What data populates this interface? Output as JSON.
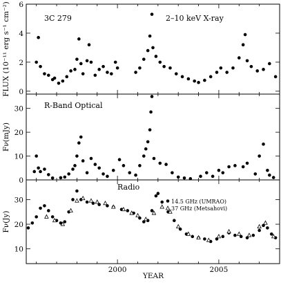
{
  "chart_data": {
    "type": "scatter",
    "xlabel": "YEAR",
    "xlim": [
      1995.5,
      2008.0
    ],
    "xticks": [
      2000,
      2005
    ],
    "panels": [
      {
        "key": "xray",
        "source_label": "3C 279",
        "title": "2–10 keV X-ray",
        "ylabel": "FLUX (10⁻¹¹ erg s⁻¹ cm⁻²)",
        "ylim": [
          -0.2,
          6.0
        ],
        "yticks": [
          0,
          2,
          4,
          6
        ],
        "series": [
          {
            "marker": "dot",
            "points": [
              [
                1996.0,
                2.0
              ],
              [
                1996.1,
                3.7
              ],
              [
                1996.2,
                1.7
              ],
              [
                1996.4,
                1.2
              ],
              [
                1996.6,
                1.1
              ],
              [
                1996.8,
                0.8
              ],
              [
                1996.9,
                0.9
              ],
              [
                1997.1,
                0.55
              ],
              [
                1997.3,
                0.7
              ],
              [
                1997.5,
                1.0
              ],
              [
                1997.7,
                1.4
              ],
              [
                1997.9,
                1.5
              ],
              [
                1998.0,
                2.2
              ],
              [
                1998.1,
                3.6
              ],
              [
                1998.2,
                1.9
              ],
              [
                1998.3,
                1.2
              ],
              [
                1998.5,
                2.1
              ],
              [
                1998.6,
                3.2
              ],
              [
                1998.7,
                2.0
              ],
              [
                1998.9,
                1.1
              ],
              [
                1999.1,
                1.5
              ],
              [
                1999.3,
                1.7
              ],
              [
                1999.5,
                1.3
              ],
              [
                1999.7,
                1.2
              ],
              [
                1999.9,
                2.0
              ],
              [
                2000.0,
                1.6
              ],
              [
                2000.9,
                1.3
              ],
              [
                2001.1,
                1.6
              ],
              [
                2001.3,
                2.2
              ],
              [
                2001.5,
                2.8
              ],
              [
                2001.6,
                3.8
              ],
              [
                2001.7,
                5.3
              ],
              [
                2001.75,
                3.0
              ],
              [
                2001.9,
                2.4
              ],
              [
                2002.1,
                2.0
              ],
              [
                2002.3,
                1.7
              ],
              [
                2002.6,
                1.6
              ],
              [
                2002.9,
                1.2
              ],
              [
                2003.2,
                1.0
              ],
              [
                2003.5,
                0.85
              ],
              [
                2003.8,
                0.7
              ],
              [
                2004.0,
                0.6
              ],
              [
                2004.3,
                0.75
              ],
              [
                2004.6,
                1.0
              ],
              [
                2004.9,
                1.3
              ],
              [
                2005.1,
                1.6
              ],
              [
                2005.4,
                1.3
              ],
              [
                2005.7,
                1.6
              ],
              [
                2006.0,
                2.3
              ],
              [
                2006.2,
                3.2
              ],
              [
                2006.3,
                3.9
              ],
              [
                2006.4,
                2.1
              ],
              [
                2006.6,
                1.7
              ],
              [
                2006.9,
                1.4
              ],
              [
                2007.2,
                1.5
              ],
              [
                2007.5,
                1.9
              ],
              [
                2007.8,
                1.0
              ]
            ]
          }
        ]
      },
      {
        "key": "optical",
        "title": "R-Band Optical",
        "ylabel": "Fν(mJy)",
        "ylim": [
          0,
          36
        ],
        "yticks": [
          0,
          10,
          20,
          30
        ],
        "series": [
          {
            "marker": "dot",
            "points": [
              [
                1995.9,
                3.5
              ],
              [
                1996.0,
                10.0
              ],
              [
                1996.1,
                5.0
              ],
              [
                1996.2,
                3.5
              ],
              [
                1996.4,
                4.5
              ],
              [
                1996.6,
                2.2
              ],
              [
                1996.8,
                0.8
              ],
              [
                1997.2,
                0.9
              ],
              [
                1997.4,
                1.2
              ],
              [
                1997.6,
                2.5
              ],
              [
                1997.8,
                4.5
              ],
              [
                1997.9,
                6.0
              ],
              [
                1998.0,
                10.0
              ],
              [
                1998.1,
                15.5
              ],
              [
                1998.2,
                18.0
              ],
              [
                1998.3,
                8.0
              ],
              [
                1998.5,
                3.0
              ],
              [
                1998.7,
                9.0
              ],
              [
                1998.9,
                6.5
              ],
              [
                1999.1,
                5.0
              ],
              [
                1999.3,
                2.5
              ],
              [
                1999.5,
                1.5
              ],
              [
                1999.8,
                4.0
              ],
              [
                2000.1,
                8.5
              ],
              [
                2000.3,
                6.0
              ],
              [
                2000.6,
                3.0
              ],
              [
                2000.9,
                2.0
              ],
              [
                2001.1,
                6.0
              ],
              [
                2001.3,
                10.0
              ],
              [
                2001.4,
                13.0
              ],
              [
                2001.5,
                16.0
              ],
              [
                2001.6,
                21.0
              ],
              [
                2001.65,
                28.5
              ],
              [
                2001.7,
                35.0
              ],
              [
                2001.8,
                9.0
              ],
              [
                2002.1,
                7.0
              ],
              [
                2002.4,
                6.5
              ],
              [
                2002.7,
                3.0
              ],
              [
                2003.0,
                1.2
              ],
              [
                2003.3,
                0.8
              ],
              [
                2003.6,
                0.5
              ],
              [
                2004.1,
                1.5
              ],
              [
                2004.4,
                3.0
              ],
              [
                2004.7,
                1.5
              ],
              [
                2005.0,
                4.0
              ],
              [
                2005.2,
                3.0
              ],
              [
                2005.5,
                5.5
              ],
              [
                2005.8,
                6.0
              ],
              [
                2006.2,
                5.5
              ],
              [
                2006.4,
                7.0
              ],
              [
                2006.8,
                2.5
              ],
              [
                2007.0,
                10.0
              ],
              [
                2007.2,
                15.0
              ],
              [
                2007.4,
                4.0
              ],
              [
                2007.5,
                2.0
              ],
              [
                2007.7,
                1.0
              ]
            ]
          }
        ]
      },
      {
        "key": "radio",
        "title": "Radio",
        "ylabel": "Fν(Jy)",
        "ylim": [
          4,
          38
        ],
        "yticks": [
          10,
          20,
          30
        ],
        "legend": [
          {
            "marker": "dot",
            "label": "14.5 GHz (UMRAO)"
          },
          {
            "marker": "triangle",
            "label": "37 GHz (Metsahovi)"
          }
        ],
        "series": [
          {
            "name": "14.5 GHz (UMRAO)",
            "marker": "dot",
            "points": [
              [
                1995.6,
                18.5
              ],
              [
                1995.8,
                20.5
              ],
              [
                1996.0,
                23.0
              ],
              [
                1996.2,
                26.5
              ],
              [
                1996.4,
                27.5
              ],
              [
                1996.6,
                25.5
              ],
              [
                1996.8,
                23.0
              ],
              [
                1997.0,
                21.5
              ],
              [
                1997.2,
                20.5
              ],
              [
                1997.4,
                21.0
              ],
              [
                1997.6,
                25.0
              ],
              [
                1997.8,
                30.0
              ],
              [
                1998.0,
                33.5
              ],
              [
                1998.2,
                30.0
              ],
              [
                1998.5,
                29.0
              ],
              [
                1998.8,
                28.5
              ],
              [
                1999.1,
                28.0
              ],
              [
                1999.5,
                27.5
              ],
              [
                1999.8,
                27.0
              ],
              [
                2000.2,
                26.0
              ],
              [
                2000.5,
                25.5
              ],
              [
                2000.8,
                24.5
              ],
              [
                2001.1,
                22.5
              ],
              [
                2001.3,
                21.0
              ],
              [
                2001.5,
                21.5
              ],
              [
                2001.7,
                25.5
              ],
              [
                2001.9,
                31.5
              ],
              [
                2002.0,
                32.5
              ],
              [
                2002.2,
                29.0
              ],
              [
                2002.5,
                25.0
              ],
              [
                2002.8,
                21.5
              ],
              [
                2003.1,
                18.0
              ],
              [
                2003.4,
                16.0
              ],
              [
                2003.7,
                15.0
              ],
              [
                2004.0,
                14.5
              ],
              [
                2004.3,
                14.0
              ],
              [
                2004.6,
                13.0
              ],
              [
                2004.9,
                14.0
              ],
              [
                2005.2,
                15.0
              ],
              [
                2005.5,
                16.5
              ],
              [
                2005.8,
                15.5
              ],
              [
                2006.1,
                15.0
              ],
              [
                2006.4,
                14.5
              ],
              [
                2006.7,
                15.5
              ],
              [
                2007.0,
                17.5
              ],
              [
                2007.2,
                19.5
              ],
              [
                2007.4,
                18.5
              ],
              [
                2007.6,
                16.0
              ],
              [
                2007.8,
                14.5
              ]
            ]
          },
          {
            "name": "37 GHz (Metsahovi)",
            "marker": "triangle",
            "points": [
              [
                1996.5,
                23.0
              ],
              [
                1996.9,
                21.5
              ],
              [
                1997.3,
                20.0
              ],
              [
                1997.7,
                25.5
              ],
              [
                1998.0,
                29.5
              ],
              [
                1998.3,
                30.5
              ],
              [
                1998.7,
                29.5
              ],
              [
                1999.0,
                29.0
              ],
              [
                1999.4,
                28.5
              ],
              [
                1999.8,
                27.0
              ],
              [
                2000.3,
                26.0
              ],
              [
                2000.7,
                24.5
              ],
              [
                2001.0,
                23.5
              ],
              [
                2001.4,
                22.0
              ],
              [
                2001.8,
                24.5
              ],
              [
                2002.2,
                27.0
              ],
              [
                2002.6,
                25.0
              ],
              [
                2003.0,
                19.0
              ],
              [
                2003.5,
                16.0
              ],
              [
                2004.0,
                14.5
              ],
              [
                2004.5,
                13.5
              ],
              [
                2005.0,
                15.0
              ],
              [
                2005.5,
                17.0
              ],
              [
                2006.0,
                16.0
              ],
              [
                2006.5,
                15.5
              ],
              [
                2007.0,
                19.0
              ],
              [
                2007.3,
                20.5
              ],
              [
                2007.7,
                15.0
              ]
            ]
          }
        ]
      }
    ]
  }
}
